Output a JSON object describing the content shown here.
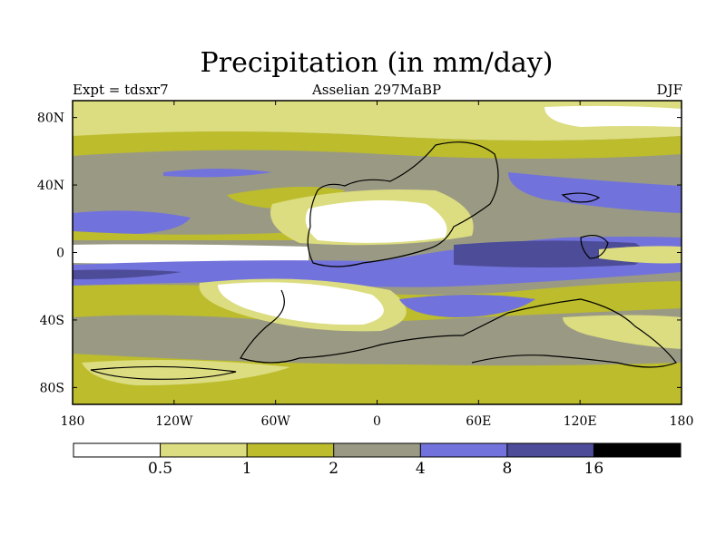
{
  "title": "Precipitation (in mm/day)",
  "experiment": "Expt = tdsxr7",
  "period": "Asselian 297MaBP",
  "season": "DJF",
  "colors": {
    "c0": "#ffffff",
    "c1": "#dcdc80",
    "c2": "#bcbc2c",
    "c3": "#9a9a84",
    "c4": "#7272dc",
    "c5": "#4c4c98",
    "c6": "#000000"
  },
  "map_data": {
    "type": "filled_contour_map",
    "projection": "equirectangular",
    "lon_range": [
      180,
      -180
    ],
    "lat_range": [
      -90,
      90
    ],
    "lon_ticks": [
      "180",
      "120W",
      "60W",
      "0",
      "60E",
      "120E",
      "180"
    ],
    "lat_ticks": [
      "80N",
      "40N",
      "0",
      "40S",
      "80S"
    ]
  },
  "colorbar": {
    "labels": [
      "0.5",
      "1",
      "2",
      "4",
      "8",
      "16"
    ]
  }
}
